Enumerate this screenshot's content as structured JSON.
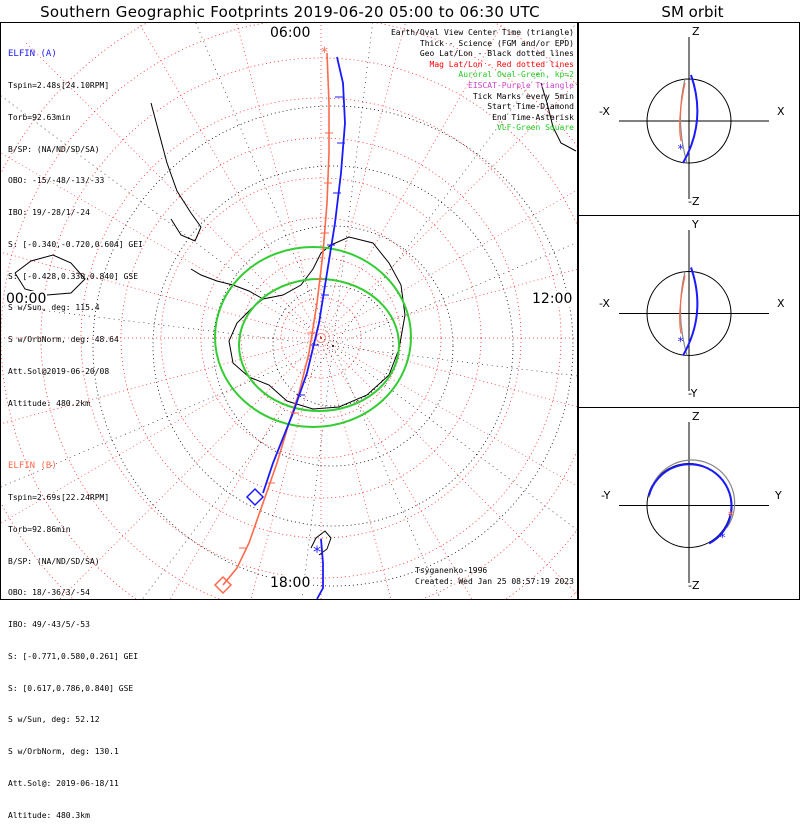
{
  "title": "Southern Geographic Footprints 2019-06-20 05:00 to 06:30 UTC",
  "sm_title": "SM orbit",
  "time_labels": {
    "top": "06:00",
    "left": "00:00",
    "right": "12:00",
    "bottom": "18:00"
  },
  "elfin_a": {
    "name": "ELFIN (A)",
    "color": "#1a1aff",
    "lines": [
      "Tspin=2.48s[24.10RPM]",
      "Torb=92.63min",
      "B/SP: (NA/ND/SD/SA)",
      "OBO: -15/-48/-13/-33",
      "IBO: 19/-28/1/-24",
      "S: [-0.340,-0.720,0.604] GEI",
      "S: [-0.428,0.330,0.840] GSE",
      "S w/Sun, deg: 115.4",
      "S w/OrbNorm, deg: 48.64",
      "Att.Sol@2019-06-20/08",
      "Altitude: 480.2km"
    ]
  },
  "elfin_b": {
    "name": "ELFIN (B)",
    "color": "#ff6a4a",
    "lines": [
      "Tspin=2.69s[22.24RPM]",
      "Torb=92.86min",
      "B/SP: (NA/ND/SD/SA)",
      "OBO: 18/-36/3/-54",
      "IBO: 49/-43/5/-53",
      "S: [-0.771,0.580,0.261] GEI",
      "S: [0.617,0.786,0.840] GSE",
      "S w/Sun, deg: 52.12",
      "S w/OrbNorm, deg: 130.1",
      "Att.Sol@: 2019-06-18/11",
      "Altitude: 480.3km"
    ]
  },
  "legend": [
    {
      "text": "Earth/Oval View Center Time (triangle)",
      "color": "#000000"
    },
    {
      "text": "Thick - Science (FGM and/or EPD)",
      "color": "#000000"
    },
    {
      "text": "Geo Lat/Lon - Black dotted lines",
      "color": "#000000"
    },
    {
      "text": "Mag Lat/Lon - Red dotted lines",
      "color": "#ff0000"
    },
    {
      "text": "Auroral Oval-Green, kp=2",
      "color": "#22cc22"
    },
    {
      "text": "EISCAT-Purple Triangle",
      "color": "#cc44cc"
    },
    {
      "text": "Tick Marks every 5min",
      "color": "#000000"
    },
    {
      "text": "Start Time-Diamond",
      "color": "#000000"
    },
    {
      "text": "End Time-Asterisk",
      "color": "#000000"
    },
    {
      "text": "VLF-Green Square",
      "color": "#22cc22"
    }
  ],
  "credit": [
    "Tsyganenko-1996",
    "Created: Wed Jan 25 08:57:19 2023"
  ],
  "sm_panels": [
    {
      "top": "Z",
      "bottom": "-Z",
      "left": "-X",
      "right": "X"
    },
    {
      "top": "Y",
      "bottom": "-Y",
      "left": "-X",
      "right": "X"
    },
    {
      "top": "Z",
      "bottom": "-Z",
      "left": "-Y",
      "right": "Y"
    }
  ],
  "colors": {
    "oval": "#33cc33",
    "mag_grid": "#ff2020",
    "geo_grid": "#000000"
  },
  "chart_data": {
    "type": "polar-map",
    "projection": "south polar stereographic",
    "series": [
      {
        "name": "ELFIN (A)",
        "color": "#1a1aff"
      },
      {
        "name": "ELFIN (B)",
        "color": "#ff6a4a"
      }
    ]
  }
}
